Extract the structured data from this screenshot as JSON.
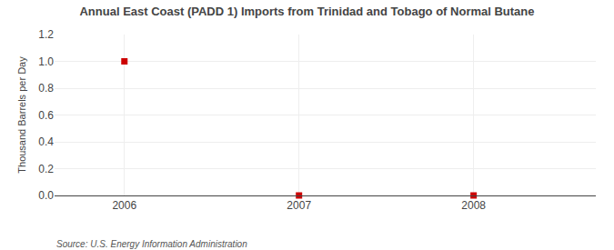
{
  "chart_data": {
    "type": "scatter",
    "title": "Annual East Coast (PADD 1) Imports from Trinidad and Tobago of Normal Butane",
    "ylabel": "Thousand Barrels per Day",
    "annotations": [
      "Source: U.S. Energy Information Administration"
    ],
    "x": [
      2006,
      2007,
      2008
    ],
    "values": [
      1.0,
      0.0,
      0.0
    ],
    "color": "#cc0000",
    "marker": "square",
    "xlim": [
      2005.6,
      2008.7
    ],
    "xticks": [
      2006,
      2007,
      2008
    ],
    "ylim": [
      0.0,
      1.2
    ],
    "yticks": [
      {
        "value": 0.0,
        "label": "0.0"
      },
      0.2,
      0.4,
      0.6,
      0.8,
      {
        "value": 1.0,
        "label": "1.0"
      },
      1.2
    ],
    "grid": true
  }
}
